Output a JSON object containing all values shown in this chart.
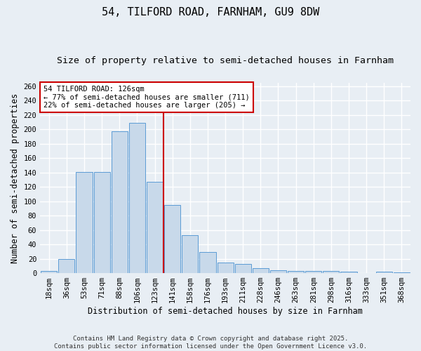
{
  "title": "54, TILFORD ROAD, FARNHAM, GU9 8DW",
  "subtitle": "Size of property relative to semi-detached houses in Farnham",
  "xlabel": "Distribution of semi-detached houses by size in Farnham",
  "ylabel": "Number of semi-detached properties",
  "categories": [
    "18sqm",
    "36sqm",
    "53sqm",
    "71sqm",
    "88sqm",
    "106sqm",
    "123sqm",
    "141sqm",
    "158sqm",
    "176sqm",
    "193sqm",
    "211sqm",
    "228sqm",
    "246sqm",
    "263sqm",
    "281sqm",
    "298sqm",
    "316sqm",
    "333sqm",
    "351sqm",
    "368sqm"
  ],
  "values": [
    3,
    20,
    141,
    141,
    197,
    209,
    127,
    95,
    53,
    29,
    15,
    13,
    7,
    4,
    3,
    3,
    3,
    2,
    0,
    2,
    1
  ],
  "bar_color": "#c8d9ea",
  "bar_edge_color": "#5b9bd5",
  "vline_color": "#cc0000",
  "annotation_text": "54 TILFORD ROAD: 126sqm\n← 77% of semi-detached houses are smaller (711)\n22% of semi-detached houses are larger (205) →",
  "annotation_box_color": "#ffffff",
  "annotation_box_edge": "#cc0000",
  "ylim": [
    0,
    265
  ],
  "yticks": [
    0,
    20,
    40,
    60,
    80,
    100,
    120,
    140,
    160,
    180,
    200,
    220,
    240,
    260
  ],
  "footer": "Contains HM Land Registry data © Crown copyright and database right 2025.\nContains public sector information licensed under the Open Government Licence v3.0.",
  "background_color": "#e8eef4",
  "plot_background_color": "#e8eef4",
  "grid_color": "#ffffff",
  "title_fontsize": 11,
  "subtitle_fontsize": 9.5,
  "label_fontsize": 8.5,
  "tick_fontsize": 7.5,
  "footer_fontsize": 6.5,
  "annotation_fontsize": 7.5
}
